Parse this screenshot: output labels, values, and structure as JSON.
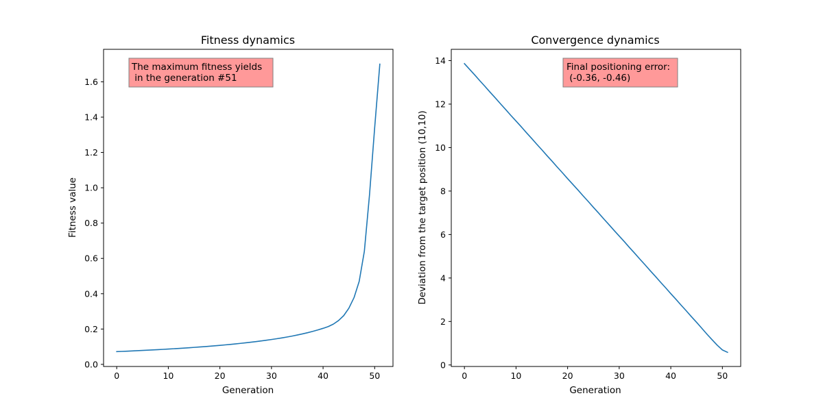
{
  "chart_data": [
    {
      "type": "line",
      "title": "Fitness dynamics",
      "xlabel": "Generation",
      "ylabel": "Fitness value",
      "xlim": [
        -2.55,
        53.55
      ],
      "ylim": [
        -0.012,
        1.784
      ],
      "xticks": [
        0,
        10,
        20,
        30,
        40,
        50
      ],
      "yticks": [
        0.0,
        0.2,
        0.4,
        0.6,
        0.8,
        1.0,
        1.2,
        1.4,
        1.6
      ],
      "ytick_labels": [
        "0.0",
        "0.2",
        "0.4",
        "0.6",
        "0.8",
        "1.0",
        "1.2",
        "1.4",
        "1.6"
      ],
      "grid": false,
      "series_color": "#1f77b4",
      "annotation": {
        "lines": [
          "The maximum fitness yields",
          " in the generation #51"
        ],
        "background": "#ff9999"
      },
      "x": [
        0,
        1,
        2,
        3,
        4,
        5,
        6,
        7,
        8,
        9,
        10,
        11,
        12,
        13,
        14,
        15,
        16,
        17,
        18,
        19,
        20,
        21,
        22,
        23,
        24,
        25,
        26,
        27,
        28,
        29,
        30,
        31,
        32,
        33,
        34,
        35,
        36,
        37,
        38,
        39,
        40,
        41,
        42,
        43,
        44,
        45,
        46,
        47,
        48,
        49,
        50,
        51
      ],
      "y": [
        0.072,
        0.0733,
        0.0746,
        0.076,
        0.0774,
        0.0788,
        0.0803,
        0.0818,
        0.0834,
        0.085,
        0.0867,
        0.0884,
        0.0902,
        0.0921,
        0.0941,
        0.0961,
        0.0982,
        0.1004,
        0.1027,
        0.1051,
        0.1076,
        0.1102,
        0.113,
        0.1159,
        0.1189,
        0.122,
        0.1254,
        0.1289,
        0.1326,
        0.1365,
        0.1407,
        0.1451,
        0.1498,
        0.1548,
        0.1602,
        0.1661,
        0.1724,
        0.1792,
        0.1867,
        0.1949,
        0.204,
        0.214,
        0.228,
        0.248,
        0.276,
        0.318,
        0.378,
        0.47,
        0.64,
        0.96,
        1.34,
        1.7
      ]
    },
    {
      "type": "line",
      "title": "Convergence dynamics",
      "xlabel": "Generation",
      "ylabel": "Deviation from the target position (10,10)",
      "xlim": [
        -2.55,
        53.55
      ],
      "ylim": [
        -0.07,
        14.52
      ],
      "xticks": [
        0,
        10,
        20,
        30,
        40,
        50
      ],
      "yticks": [
        0,
        2,
        4,
        6,
        8,
        10,
        12,
        14
      ],
      "ytick_labels": [
        "0",
        "2",
        "4",
        "6",
        "8",
        "10",
        "12",
        "14"
      ],
      "grid": false,
      "series_color": "#1f77b4",
      "annotation": {
        "lines": [
          "Final positioning error:",
          " (-0.36, -0.46)"
        ],
        "background": "#ff9999"
      },
      "x": [
        0,
        1,
        2,
        3,
        4,
        5,
        6,
        7,
        8,
        9,
        10,
        11,
        12,
        13,
        14,
        15,
        16,
        17,
        18,
        19,
        20,
        21,
        22,
        23,
        24,
        25,
        26,
        27,
        28,
        29,
        30,
        31,
        32,
        33,
        34,
        35,
        36,
        37,
        38,
        39,
        40,
        41,
        42,
        43,
        44,
        45,
        46,
        47,
        48,
        49,
        50,
        51
      ],
      "y": [
        13.86,
        13.6,
        13.34,
        13.07,
        12.81,
        12.54,
        12.28,
        12.01,
        11.75,
        11.48,
        11.22,
        10.96,
        10.69,
        10.43,
        10.16,
        9.9,
        9.63,
        9.37,
        9.1,
        8.84,
        8.57,
        8.31,
        8.05,
        7.78,
        7.52,
        7.25,
        6.99,
        6.72,
        6.46,
        6.19,
        5.93,
        5.67,
        5.4,
        5.14,
        4.87,
        4.61,
        4.34,
        4.08,
        3.81,
        3.55,
        3.28,
        3.02,
        2.75,
        2.49,
        2.22,
        1.96,
        1.69,
        1.42,
        1.16,
        0.91,
        0.69,
        0.58
      ]
    }
  ]
}
